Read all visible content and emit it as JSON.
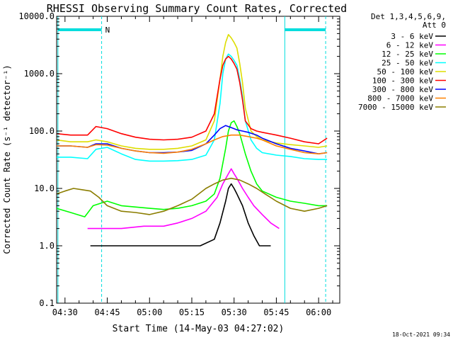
{
  "chart_data": {
    "type": "line",
    "title": "RHESSI Observing Summary Count Rates, Corrected",
    "xlabel": "Start Time (14-May-03 04:27:02)",
    "ylabel": "Corrected Count Rate (s⁻¹ detector⁻¹)",
    "footer": "18-Oct-2021 09:34",
    "y_scale": "log",
    "ylim": [
      0.1,
      10000
    ],
    "xlim": [
      "04:27:02",
      "06:07:30"
    ],
    "y_ticks": [
      "0.1",
      "1.0",
      "10.0",
      "100.0",
      "1000.0",
      "10000.0"
    ],
    "x_ticks": [
      {
        "label": "04:30",
        "t": 270
      },
      {
        "label": "04:45",
        "t": 285
      },
      {
        "label": "05:00",
        "t": 300
      },
      {
        "label": "05:15",
        "t": 315
      },
      {
        "label": "05:30",
        "t": 330
      },
      {
        "label": "05:45",
        "t": 345
      },
      {
        "label": "06:00",
        "t": 360
      }
    ],
    "legend": {
      "placement": "top-right",
      "header": [
        "Det 1,3,4,5,6,9,",
        "Att 0"
      ]
    },
    "annotations": {
      "night_label": "N",
      "bars": [
        {
          "t0": 267.5,
          "t1": 283.0
        },
        {
          "t0": 348.0,
          "t1": 362.5
        }
      ],
      "solid_markers": [
        267.5,
        348.0
      ],
      "dashed_markers": [
        283.0,
        362.5
      ]
    },
    "series": [
      {
        "name": "3 - 6 keV",
        "color": "#000000",
        "points": [
          [
            279,
            1.0
          ],
          [
            284,
            1.0
          ],
          [
            288,
            1.0
          ],
          [
            295,
            1.0
          ],
          [
            305,
            1.0
          ],
          [
            312,
            1.0
          ],
          [
            318,
            1.0
          ],
          [
            323,
            1.3
          ],
          [
            325,
            2.5
          ],
          [
            327,
            6.0
          ],
          [
            328,
            10.0
          ],
          [
            329,
            12.0
          ],
          [
            330,
            10.0
          ],
          [
            331,
            8.0
          ],
          [
            333,
            5.0
          ],
          [
            335,
            2.5
          ],
          [
            337,
            1.5
          ],
          [
            339,
            1.0
          ],
          [
            343,
            1.0
          ]
        ]
      },
      {
        "name": "6 - 12 keV",
        "color": "#ff00ff",
        "points": [
          [
            278,
            2.0
          ],
          [
            283,
            2.0
          ],
          [
            290,
            2.0
          ],
          [
            298,
            2.2
          ],
          [
            305,
            2.2
          ],
          [
            310,
            2.5
          ],
          [
            315,
            3.0
          ],
          [
            320,
            4.0
          ],
          [
            324,
            7.0
          ],
          [
            326,
            12.0
          ],
          [
            328,
            18.0
          ],
          [
            329,
            22.0
          ],
          [
            330,
            18.0
          ],
          [
            331,
            15.0
          ],
          [
            333,
            10.0
          ],
          [
            335,
            7.0
          ],
          [
            337,
            5.0
          ],
          [
            340,
            3.5
          ],
          [
            343,
            2.5
          ],
          [
            346,
            2.0
          ]
        ]
      },
      {
        "name": "12 - 25 keV",
        "color": "#00ff00",
        "points": [
          [
            267,
            4.5
          ],
          [
            272,
            3.8
          ],
          [
            277,
            3.2
          ],
          [
            280,
            5.0
          ],
          [
            285,
            6.0
          ],
          [
            290,
            5.0
          ],
          [
            300,
            4.5
          ],
          [
            305,
            4.3
          ],
          [
            310,
            4.5
          ],
          [
            315,
            5.0
          ],
          [
            320,
            6.0
          ],
          [
            323,
            8.0
          ],
          [
            325,
            15.0
          ],
          [
            327,
            50.0
          ],
          [
            328,
            100.0
          ],
          [
            329,
            140.0
          ],
          [
            330,
            150.0
          ],
          [
            331,
            120.0
          ],
          [
            332,
            90.0
          ],
          [
            334,
            40.0
          ],
          [
            336,
            20.0
          ],
          [
            338,
            12.0
          ],
          [
            340,
            9.0
          ],
          [
            345,
            7.0
          ],
          [
            350,
            6.0
          ],
          [
            355,
            5.5
          ],
          [
            360,
            5.0
          ],
          [
            363,
            5.0
          ]
        ]
      },
      {
        "name": "25 - 50 keV",
        "color": "#00ffff",
        "points": [
          [
            267,
            35.0
          ],
          [
            272,
            35.0
          ],
          [
            278,
            33.0
          ],
          [
            281,
            48.0
          ],
          [
            285,
            52.0
          ],
          [
            290,
            40.0
          ],
          [
            295,
            32.0
          ],
          [
            300,
            30.0
          ],
          [
            305,
            30.0
          ],
          [
            310,
            30.5
          ],
          [
            315,
            32.0
          ],
          [
            320,
            38.0
          ],
          [
            323,
            70.0
          ],
          [
            325,
            300.0
          ],
          [
            326,
            1000.0
          ],
          [
            327,
            1800.0
          ],
          [
            328,
            2200.0
          ],
          [
            329,
            2000.0
          ],
          [
            330,
            1700.0
          ],
          [
            331,
            1400.0
          ],
          [
            332,
            800.0
          ],
          [
            333,
            400.0
          ],
          [
            334,
            150.0
          ],
          [
            336,
            70.0
          ],
          [
            338,
            50.0
          ],
          [
            340,
            42.0
          ],
          [
            345,
            38.0
          ],
          [
            350,
            36.0
          ],
          [
            355,
            33.0
          ],
          [
            360,
            32.0
          ],
          [
            363,
            32.0
          ]
        ]
      },
      {
        "name": "50 - 100 keV",
        "color": "#dddd00",
        "points": [
          [
            267,
            70.0
          ],
          [
            272,
            65.0
          ],
          [
            278,
            65.0
          ],
          [
            281,
            70.0
          ],
          [
            285,
            65.0
          ],
          [
            290,
            55.0
          ],
          [
            295,
            50.0
          ],
          [
            300,
            48.0
          ],
          [
            305,
            48.0
          ],
          [
            310,
            50.0
          ],
          [
            315,
            55.0
          ],
          [
            320,
            70.0
          ],
          [
            323,
            150.0
          ],
          [
            325,
            800.0
          ],
          [
            326,
            2000.0
          ],
          [
            327,
            3500.0
          ],
          [
            328,
            4800.0
          ],
          [
            329,
            4200.0
          ],
          [
            330,
            3500.0
          ],
          [
            331,
            2800.0
          ],
          [
            332,
            1500.0
          ],
          [
            333,
            700.0
          ],
          [
            334,
            250.0
          ],
          [
            336,
            100.0
          ],
          [
            338,
            80.0
          ],
          [
            340,
            70.0
          ],
          [
            345,
            62.0
          ],
          [
            350,
            58.0
          ],
          [
            355,
            55.0
          ],
          [
            360,
            52.0
          ],
          [
            363,
            55.0
          ]
        ]
      },
      {
        "name": "100 - 300 keV",
        "color": "#ff0000",
        "points": [
          [
            267,
            90.0
          ],
          [
            272,
            85.0
          ],
          [
            278,
            85.0
          ],
          [
            281,
            120.0
          ],
          [
            285,
            110.0
          ],
          [
            290,
            90.0
          ],
          [
            295,
            78.0
          ],
          [
            300,
            72.0
          ],
          [
            305,
            70.0
          ],
          [
            310,
            72.0
          ],
          [
            315,
            78.0
          ],
          [
            320,
            100.0
          ],
          [
            323,
            200.0
          ],
          [
            325,
            800.0
          ],
          [
            326,
            1400.0
          ],
          [
            327,
            1800.0
          ],
          [
            328,
            2000.0
          ],
          [
            329,
            1800.0
          ],
          [
            330,
            1500.0
          ],
          [
            331,
            1200.0
          ],
          [
            332,
            700.0
          ],
          [
            333,
            350.0
          ],
          [
            334,
            150.0
          ],
          [
            336,
            110.0
          ],
          [
            338,
            100.0
          ],
          [
            340,
            95.0
          ],
          [
            345,
            85.0
          ],
          [
            350,
            75.0
          ],
          [
            355,
            65.0
          ],
          [
            360,
            60.0
          ],
          [
            363,
            75.0
          ]
        ]
      },
      {
        "name": "300 - 800 keV",
        "color": "#0000ff",
        "points": [
          [
            267,
            55.0
          ],
          [
            272,
            55.0
          ],
          [
            278,
            52.0
          ],
          [
            281,
            60.0
          ],
          [
            285,
            60.0
          ],
          [
            290,
            50.0
          ],
          [
            295,
            45.0
          ],
          [
            300,
            42.0
          ],
          [
            305,
            42.0
          ],
          [
            310,
            43.0
          ],
          [
            315,
            46.0
          ],
          [
            320,
            60.0
          ],
          [
            323,
            85.0
          ],
          [
            325,
            110.0
          ],
          [
            327,
            125.0
          ],
          [
            329,
            115.0
          ],
          [
            331,
            105.0
          ],
          [
            333,
            100.0
          ],
          [
            335,
            95.0
          ],
          [
            338,
            85.0
          ],
          [
            340,
            75.0
          ],
          [
            345,
            60.0
          ],
          [
            350,
            50.0
          ],
          [
            355,
            45.0
          ],
          [
            360,
            40.0
          ],
          [
            363,
            42.0
          ]
        ]
      },
      {
        "name": "800 - 7000 keV",
        "color": "#ff8000",
        "points": [
          [
            267,
            55.0
          ],
          [
            272,
            55.0
          ],
          [
            278,
            52.0
          ],
          [
            281,
            58.0
          ],
          [
            285,
            57.0
          ],
          [
            290,
            50.0
          ],
          [
            295,
            45.0
          ],
          [
            300,
            42.0
          ],
          [
            305,
            41.0
          ],
          [
            310,
            43.0
          ],
          [
            315,
            48.0
          ],
          [
            320,
            60.0
          ],
          [
            323,
            70.0
          ],
          [
            326,
            80.0
          ],
          [
            329,
            85.0
          ],
          [
            332,
            85.0
          ],
          [
            335,
            80.0
          ],
          [
            338,
            75.0
          ],
          [
            340,
            70.0
          ],
          [
            345,
            55.0
          ],
          [
            350,
            48.0
          ],
          [
            355,
            42.0
          ],
          [
            360,
            40.0
          ],
          [
            363,
            42.0
          ]
        ]
      },
      {
        "name": "7000 - 15000 keV",
        "color": "#8b7d00",
        "points": [
          [
            267,
            8.0
          ],
          [
            270,
            9.0
          ],
          [
            273,
            10.0
          ],
          [
            276,
            9.5
          ],
          [
            279,
            9.0
          ],
          [
            282,
            7.0
          ],
          [
            285,
            5.0
          ],
          [
            290,
            4.0
          ],
          [
            295,
            3.8
          ],
          [
            300,
            3.5
          ],
          [
            305,
            4.0
          ],
          [
            310,
            5.0
          ],
          [
            315,
            6.5
          ],
          [
            320,
            10.0
          ],
          [
            323,
            12.0
          ],
          [
            326,
            14.0
          ],
          [
            329,
            15.0
          ],
          [
            332,
            14.0
          ],
          [
            335,
            12.0
          ],
          [
            338,
            10.0
          ],
          [
            341,
            8.0
          ],
          [
            345,
            6.0
          ],
          [
            350,
            4.5
          ],
          [
            355,
            4.0
          ],
          [
            360,
            4.5
          ],
          [
            363,
            5.0
          ]
        ]
      }
    ]
  }
}
